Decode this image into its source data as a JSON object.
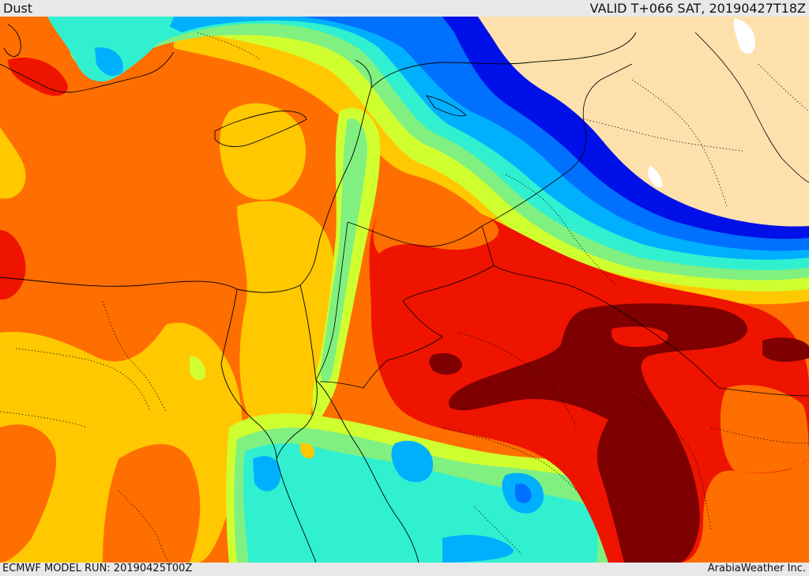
{
  "header": {
    "title": "Dust",
    "valid": "VALID T+066 SAT, 20190427T18Z"
  },
  "footer": {
    "model_run": "ECMWF MODEL RUN: 20190425T00Z",
    "credit": "ArabiaWeather Inc."
  },
  "palette": {
    "land_no_data": "#fde0ac",
    "dark_blue": "#0010e8",
    "blue": "#0070ff",
    "sky": "#00b0ff",
    "cyan": "#30f0d0",
    "light_green": "#80f080",
    "yellow_green": "#d0ff30",
    "yellow": "#ffc800",
    "orange": "#ff6e00",
    "red": "#ee1400",
    "dark_red": "#7e0000",
    "water": "#ffffff"
  }
}
